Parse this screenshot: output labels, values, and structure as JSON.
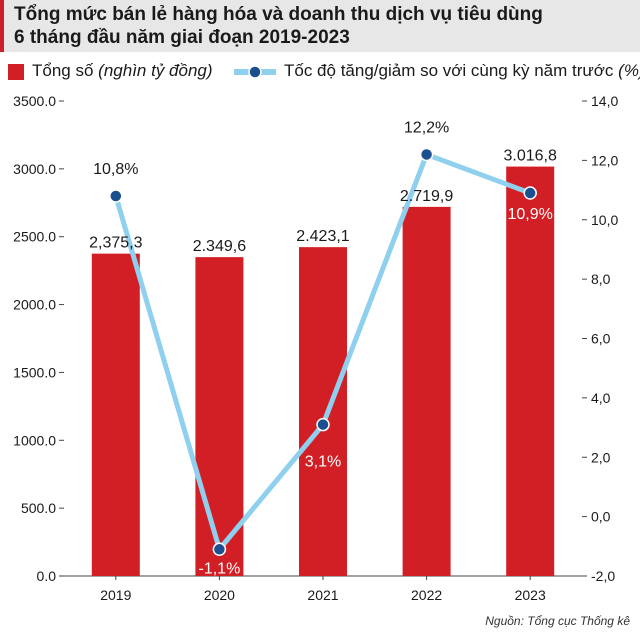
{
  "header": {
    "title_line1": "Tổng mức bán lẻ hàng hóa và doanh thu dịch vụ tiêu dùng",
    "title_line2": "6 tháng đầu năm giai đoạn 2019-2023"
  },
  "legend": {
    "bar_label": "Tổng số",
    "bar_unit": "(nghìn tỷ đồng)",
    "line_label": "Tốc độ tăng/giảm so với cùng kỳ năm trước",
    "line_unit": "(%)"
  },
  "source": "Nguồn: Tổng cục Thống kê",
  "colors": {
    "bar": "#d21f26",
    "line": "#8fd0ee",
    "point": "#1c4f8f",
    "header_bg": "#e7e7e7"
  },
  "chart_data": {
    "type": "bar",
    "categories": [
      "2019",
      "2020",
      "2021",
      "2022",
      "2023"
    ],
    "series": [
      {
        "name": "Tổng số (nghìn tỷ đồng)",
        "type": "bar",
        "axis": "left",
        "values": [
          2375.3,
          2349.6,
          2423.1,
          2719.9,
          3016.8
        ],
        "labels": [
          "2,375,3",
          "2.349,6",
          "2.423,1",
          "2.719,9",
          "3.016,8"
        ]
      },
      {
        "name": "Tốc độ tăng/giảm so với cùng kỳ năm trước (%)",
        "type": "line",
        "axis": "right",
        "values": [
          10.8,
          -1.1,
          3.1,
          12.2,
          10.9
        ],
        "labels": [
          "10,8%",
          "-1,1%",
          "3,1%",
          "12,2%",
          "10,9%"
        ]
      }
    ],
    "y_left": {
      "range": [
        0,
        3500
      ],
      "ticks": [
        0,
        500,
        1000,
        1500,
        2000,
        2500,
        3000,
        3500
      ],
      "tick_labels": [
        "0.0",
        "500.0",
        "1000.0",
        "1500.0",
        "2000.0",
        "2500.0",
        "3000.0",
        "3500.0"
      ]
    },
    "y_right": {
      "range": [
        -2,
        14
      ],
      "ticks": [
        -2,
        0,
        2,
        4,
        6,
        8,
        10,
        12,
        14
      ],
      "tick_labels": [
        "-2,0",
        "0,0",
        "2,0",
        "4,0",
        "6,0",
        "8,0",
        "10,0",
        "12,0",
        "14,0"
      ]
    },
    "grid": false,
    "legend_position": "top"
  }
}
